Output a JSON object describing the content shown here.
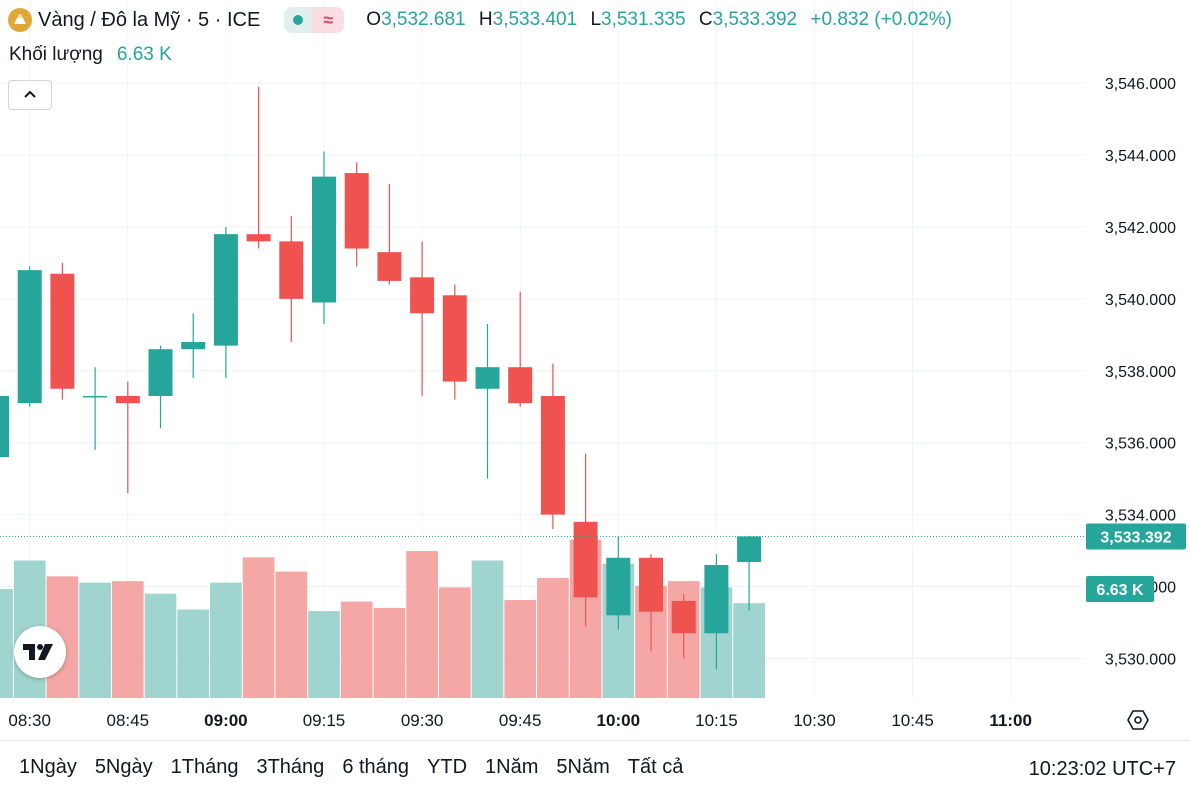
{
  "header": {
    "symbol_title": "Vàng / Đô la Mỹ · 5 · ICE",
    "badge_wave": "≈",
    "open_label": "O",
    "open": "3,532.681",
    "high_label": "H",
    "high": "3,533.401",
    "low_label": "L",
    "low": "3,531.335",
    "close_label": "C",
    "close": "3,533.392",
    "change": "+0.832 (+0.02%)",
    "volume_label": "Khối lượng",
    "volume_value": "6.63 K"
  },
  "colors": {
    "up": "#26a69a",
    "down": "#ef5350",
    "up_volume": "#9fd4cf",
    "down_volume": "#f4a7a5",
    "grid": "#f0f3fa",
    "badge_accent": "#e0a637"
  },
  "icons": [
    "gold-coin-icon",
    "chevron-up-icon",
    "tradingview-logo-icon",
    "settings-hexagon-icon"
  ],
  "range_buttons": [
    "1Ngày",
    "5Ngày",
    "1Tháng",
    "3Tháng",
    "6 tháng",
    "YTD",
    "1Năm",
    "5Năm",
    "Tất cả"
  ],
  "clock": "10:23:02 UTC+7",
  "chart_data": {
    "type": "candlestick",
    "interval": "5 min",
    "y_ticks": [
      "3,546.000",
      "3,544.000",
      "3,542.000",
      "3,540.000",
      "3,538.000",
      "3,536.000",
      "3,534.000",
      "3,532.000",
      "3,530.000"
    ],
    "ylim": [
      3528.9,
      3547.2
    ],
    "x_ticks": [
      {
        "label": "08:30",
        "bold": false
      },
      {
        "label": "08:45",
        "bold": false
      },
      {
        "label": "09:00",
        "bold": true
      },
      {
        "label": "09:15",
        "bold": false
      },
      {
        "label": "09:30",
        "bold": false
      },
      {
        "label": "09:45",
        "bold": false
      },
      {
        "label": "10:00",
        "bold": true
      },
      {
        "label": "10:15",
        "bold": false
      },
      {
        "label": "10:30",
        "bold": false
      },
      {
        "label": "10:45",
        "bold": false
      },
      {
        "label": "11:00",
        "bold": true
      }
    ],
    "last_price_label": "3,533.392",
    "last_price": 3533.392,
    "last_volume_label": "6.63 K",
    "candles": [
      {
        "t": "08:25",
        "o": 3535.6,
        "h": 3537.3,
        "l": 3535.6,
        "c": 3537.3
      },
      {
        "t": "08:30",
        "o": 3537.1,
        "h": 3540.9,
        "l": 3537.0,
        "c": 3540.8
      },
      {
        "t": "08:35",
        "o": 3540.7,
        "h": 3541.0,
        "l": 3537.2,
        "c": 3537.5
      },
      {
        "t": "08:40",
        "o": 3537.3,
        "h": 3538.1,
        "l": 3535.8,
        "c": 3537.3
      },
      {
        "t": "08:45",
        "o": 3537.3,
        "h": 3537.7,
        "l": 3534.6,
        "c": 3537.1
      },
      {
        "t": "08:50",
        "o": 3537.3,
        "h": 3538.7,
        "l": 3536.4,
        "c": 3538.6
      },
      {
        "t": "08:55",
        "o": 3538.6,
        "h": 3539.6,
        "l": 3537.8,
        "c": 3538.8
      },
      {
        "t": "09:00",
        "o": 3538.7,
        "h": 3542.0,
        "l": 3537.8,
        "c": 3541.8
      },
      {
        "t": "09:05",
        "o": 3541.8,
        "h": 3545.9,
        "l": 3541.4,
        "c": 3541.6
      },
      {
        "t": "09:10",
        "o": 3541.6,
        "h": 3542.3,
        "l": 3538.8,
        "c": 3540.0
      },
      {
        "t": "09:15",
        "o": 3539.9,
        "h": 3544.1,
        "l": 3539.3,
        "c": 3543.4
      },
      {
        "t": "09:20",
        "o": 3543.5,
        "h": 3543.8,
        "l": 3540.9,
        "c": 3541.4
      },
      {
        "t": "09:25",
        "o": 3541.3,
        "h": 3543.2,
        "l": 3540.4,
        "c": 3540.5
      },
      {
        "t": "09:30",
        "o": 3540.6,
        "h": 3541.6,
        "l": 3537.3,
        "c": 3539.6
      },
      {
        "t": "09:35",
        "o": 3540.1,
        "h": 3540.4,
        "l": 3537.2,
        "c": 3537.7
      },
      {
        "t": "09:40",
        "o": 3537.5,
        "h": 3539.3,
        "l": 3535.0,
        "c": 3538.1
      },
      {
        "t": "09:45",
        "o": 3538.1,
        "h": 3540.2,
        "l": 3537.0,
        "c": 3537.1
      },
      {
        "t": "09:50",
        "o": 3537.3,
        "h": 3538.2,
        "l": 3533.6,
        "c": 3534.0
      },
      {
        "t": "09:55",
        "o": 3533.8,
        "h": 3535.7,
        "l": 3530.9,
        "c": 3531.7
      },
      {
        "t": "10:00",
        "o": 3531.2,
        "h": 3533.4,
        "l": 3530.8,
        "c": 3532.8
      },
      {
        "t": "10:05",
        "o": 3532.8,
        "h": 3532.9,
        "l": 3530.2,
        "c": 3531.3
      },
      {
        "t": "10:10",
        "o": 3531.6,
        "h": 3531.8,
        "l": 3530.0,
        "c": 3530.7
      },
      {
        "t": "10:15",
        "o": 3530.7,
        "h": 3532.9,
        "l": 3529.7,
        "c": 3532.6
      },
      {
        "t": "10:20",
        "o": 3532.681,
        "h": 3533.401,
        "l": 3531.335,
        "c": 3533.392
      }
    ],
    "volume_relative": [
      0.69,
      0.87,
      0.77,
      0.73,
      0.74,
      0.66,
      0.56,
      0.73,
      0.89,
      0.8,
      0.55,
      0.61,
      0.57,
      0.93,
      0.7,
      0.87,
      0.62,
      0.76,
      1.0,
      0.85,
      0.71,
      0.74,
      0.7,
      0.6
    ]
  }
}
